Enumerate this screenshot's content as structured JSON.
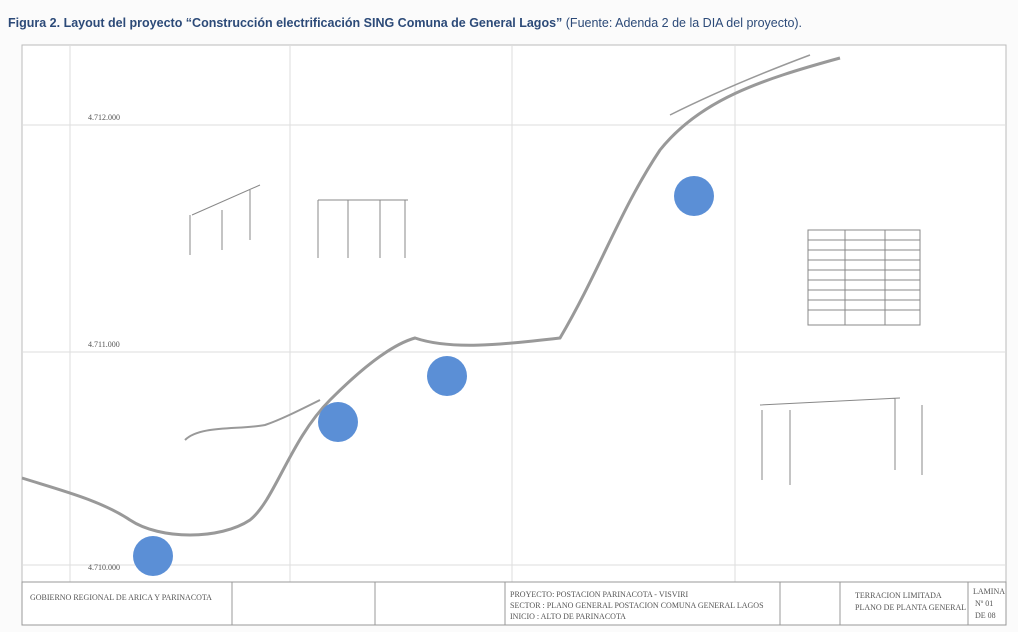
{
  "caption": {
    "title": "Figura 2. Layout del proyecto “Construcción electrificación SING Comuna de General Lagos”",
    "source": "(Fuente: Adenda 2 de la DIA del proyecto)."
  },
  "drawing": {
    "grid_labels": [
      "4.712.000",
      "4.711.000",
      "4.710.000"
    ],
    "title_block": {
      "owner": "GOBIERNO REGIONAL DE ARICA Y PARINACOTA",
      "project": "PROYECTO: POSTACION PARINACOTA - VISVIRI",
      "sector": "SECTOR : PLANO GENERAL POSTACION COMUNA GENERAL LAGOS",
      "start": "INICIO : ALTO DE PARINACOTA",
      "company": "TERRACION LIMITADA",
      "plan": "PLANO DE PLANTA GENERAL",
      "sheet": "LAMINA",
      "number": "Nº 01",
      "of": "DE 08"
    }
  }
}
